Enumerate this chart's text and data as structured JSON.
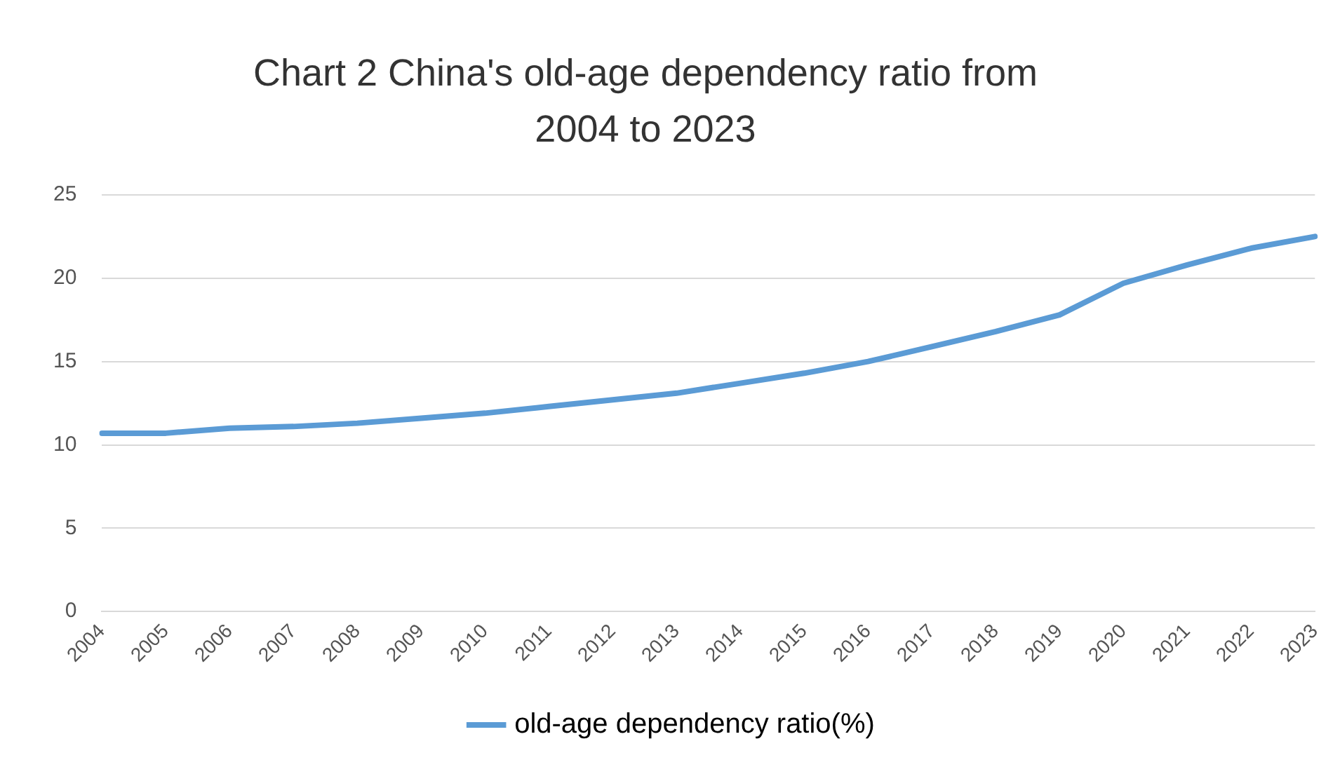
{
  "chart_data": {
    "type": "line",
    "title": "Chart 2 China's old-age dependency ratio from 2004 to 2023",
    "categories": [
      "2004",
      "2005",
      "2006",
      "2007",
      "2008",
      "2009",
      "2010",
      "2011",
      "2012",
      "2013",
      "2014",
      "2015",
      "2016",
      "2017",
      "2018",
      "2019",
      "2020",
      "2021",
      "2022",
      "2023"
    ],
    "series": [
      {
        "name": "old-age dependency ratio(%)",
        "color": "#5b9bd5",
        "values": [
          10.7,
          10.7,
          11.0,
          11.1,
          11.3,
          11.6,
          11.9,
          12.3,
          12.7,
          13.1,
          13.7,
          14.3,
          15.0,
          15.9,
          16.8,
          17.8,
          19.7,
          20.8,
          21.8,
          22.5
        ]
      }
    ],
    "ylim": [
      0,
      25
    ],
    "yticks": [
      0,
      5,
      10,
      15,
      20,
      25
    ],
    "grid": "y",
    "legend": "bottom",
    "marker": "none",
    "line_style": "solid"
  }
}
